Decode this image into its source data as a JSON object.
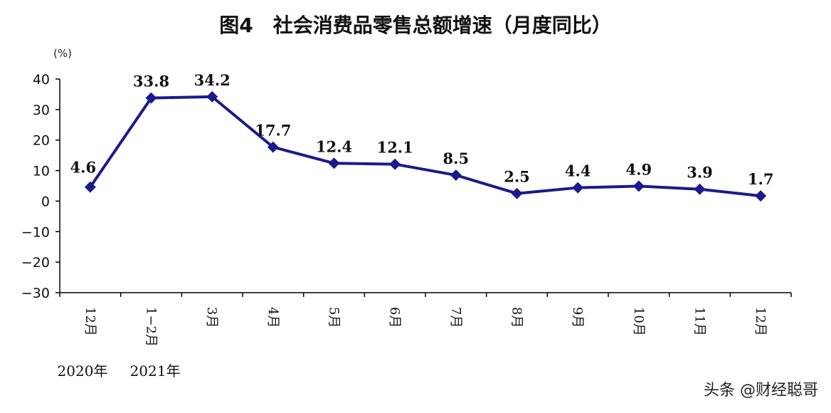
{
  "chart_data": {
    "type": "line",
    "title": "图4　社会消费品零售总额增速（月度同比）",
    "unit": "(%)",
    "categories": [
      "12月",
      "1−2月",
      "3月",
      "4月",
      "5月",
      "6月",
      "7月",
      "8月",
      "9月",
      "10月",
      "11月",
      "12月"
    ],
    "values": [
      4.6,
      33.8,
      34.2,
      17.7,
      12.4,
      12.1,
      8.5,
      2.5,
      4.4,
      4.9,
      3.9,
      1.7
    ],
    "data_labels": [
      "4.6",
      "33.8",
      "34.2",
      "17.7",
      "12.4",
      "12.1",
      "8.5",
      "2.5",
      "4.4",
      "4.9",
      "3.9",
      "1.7"
    ],
    "yticks": [
      "40",
      "30",
      "20",
      "10",
      "0",
      "−10",
      "−20",
      "−30"
    ],
    "ylim": [
      -30,
      40
    ],
    "year_labels": [
      "2020年",
      "2021年"
    ],
    "line_color": "#1a1a8c",
    "marker": "diamond",
    "grid": false
  },
  "watermark": "头条 @财经聪哥"
}
